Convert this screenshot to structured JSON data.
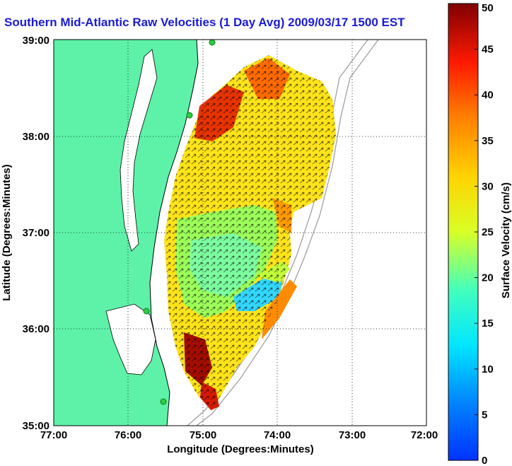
{
  "title": "Southern Mid-Atlantic Raw Velocities (1 Day Avg) 2009/03/17 1500 EST",
  "map": {
    "xlabel": "Longitude (Degrees:Minutes)",
    "ylabel": "Latitude (Degrees:Minutes)",
    "lon_range": [
      -77,
      -72
    ],
    "lat_range": [
      35,
      39
    ],
    "x_ticks": [
      "77:00",
      "76:00",
      "75:00",
      "74:00",
      "73:00",
      "72:00"
    ],
    "y_ticks": [
      "35:00",
      "36:00",
      "37:00",
      "38:00",
      "39:00"
    ],
    "gridlines": "dotted",
    "land_color": "#5ef2a8",
    "water_color": "#ffffff",
    "station_color": "#2ecc40"
  },
  "colorbar": {
    "label": "Surface Velocity (cm/s)",
    "min": 0,
    "max": 50,
    "ticks": [
      "0",
      "5",
      "10",
      "15",
      "20",
      "25",
      "30",
      "35",
      "40",
      "45",
      "50"
    ],
    "colormap": "jet"
  }
}
